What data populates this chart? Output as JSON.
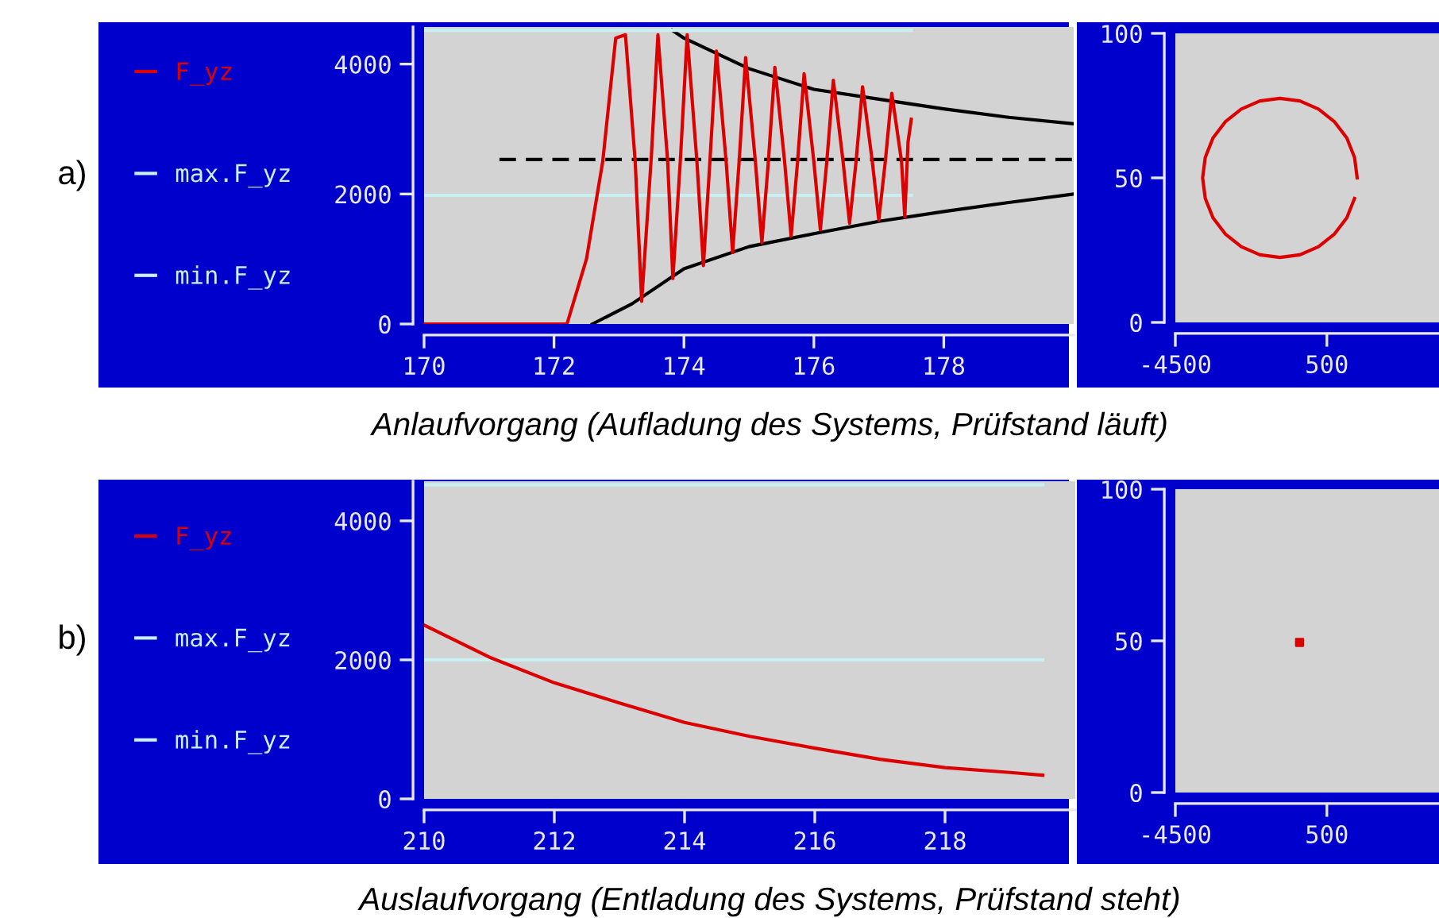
{
  "chart_data": [
    {
      "type": "line",
      "annotations": [
        "a)",
        "Anlaufvorgang (Aufladung des Systems, Prüfstand läuft)"
      ],
      "xlim": [
        170,
        180
      ],
      "ylim": [
        0,
        4570
      ],
      "xticks": [
        170,
        172,
        174,
        176,
        178
      ],
      "yticks": [
        0,
        2000,
        4000
      ],
      "legend": "left",
      "grid": false,
      "marker": "none",
      "series": [
        {
          "name": "F_yz",
          "color": "#dd0000",
          "x": [
            170,
            172.2,
            172.5,
            172.75,
            172.95,
            173.1,
            173.25,
            173.35,
            173.5,
            173.6,
            173.75,
            173.83,
            173.95,
            174.05,
            174.2,
            174.3,
            174.4,
            174.5,
            174.65,
            174.75,
            174.85,
            174.95,
            175.1,
            175.2,
            175.3,
            175.4,
            175.55,
            175.65,
            175.75,
            175.85,
            176.0,
            176.1,
            176.2,
            176.3,
            176.45,
            176.55,
            176.65,
            176.75,
            176.9,
            177.0,
            177.1,
            177.2,
            177.35,
            177.4,
            177.45,
            177.5
          ],
          "values": [
            0,
            0,
            1000,
            2500,
            4400,
            4450,
            2500,
            350,
            2600,
            4450,
            2500,
            700,
            2600,
            4450,
            2500,
            900,
            2500,
            4200,
            2500,
            1100,
            2500,
            4100,
            2500,
            1250,
            2500,
            3950,
            2500,
            1350,
            2500,
            3850,
            2500,
            1450,
            2500,
            3750,
            2500,
            1550,
            2500,
            3650,
            2500,
            1600,
            2500,
            3550,
            2500,
            1650,
            2800,
            3150
          ]
        },
        {
          "name": "max.F_yz",
          "color": "#c8f0f0",
          "x": [
            170,
            177.5
          ],
          "values": [
            4520,
            4520
          ]
        },
        {
          "name": "min.F_yz",
          "color": "#c8f0f0",
          "x": [
            170,
            177.5
          ],
          "values": [
            1980,
            1980
          ]
        },
        {
          "color": "#000000",
          "x": [
            173.82,
            174,
            175,
            176,
            177,
            178,
            179,
            180
          ],
          "values": [
            4520,
            4400,
            3930,
            3610,
            3460,
            3310,
            3180,
            3080
          ]
        },
        {
          "color": "#000000",
          "x": [
            172.59,
            173.2,
            174,
            175,
            176,
            177,
            178,
            179,
            180
          ],
          "values": [
            0,
            310,
            850,
            1190,
            1390,
            1580,
            1730,
            1870,
            2000
          ]
        },
        {
          "color": "#000000",
          "line_style": "dashed",
          "x": [
            171.16,
            180
          ],
          "values": [
            2530,
            2530
          ]
        }
      ]
    },
    {
      "type": "line",
      "xlim": [
        -4500,
        4200
      ],
      "ylim": [
        0,
        100
      ],
      "xticks": [
        -4500,
        500
      ],
      "yticks": [
        0,
        50,
        100
      ],
      "grid": false,
      "series": [
        {
          "color": "#dd0000",
          "x": [
            1500,
            1413,
            1158,
            753,
            225,
            -390,
            -1050,
            -1710,
            -2325,
            -2853,
            -3258,
            -3513,
            -3600,
            -3513,
            -3258,
            -2853,
            -2325,
            -1710,
            -1050,
            -390,
            225,
            753,
            1158,
            1413
          ],
          "values": [
            50,
            57.1,
            63.8,
            69.4,
            73.8,
            76.6,
            77.5,
            76.6,
            73.8,
            69.4,
            63.8,
            57.1,
            50,
            42.9,
            36.2,
            30.6,
            26.2,
            23.4,
            22.5,
            23.4,
            26.2,
            30.6,
            36.2,
            42.9
          ]
        }
      ]
    },
    {
      "type": "line",
      "annotations": [
        "b)",
        "Auslaufvorgang (Entladung des Systems, Prüfstand steht)"
      ],
      "xlim": [
        210,
        220
      ],
      "ylim": [
        0,
        4570
      ],
      "xticks": [
        210,
        212,
        214,
        216,
        218
      ],
      "yticks": [
        0,
        2000,
        4000
      ],
      "legend": "left",
      "grid": false,
      "marker": "none",
      "series": [
        {
          "name": "F_yz",
          "color": "#dd0000",
          "x": [
            210,
            211,
            212,
            213,
            214,
            215,
            216,
            217,
            218,
            219,
            219.5
          ],
          "values": [
            2500,
            2040,
            1670,
            1380,
            1100,
            900,
            730,
            570,
            450,
            380,
            340
          ]
        },
        {
          "name": "max.F_yz",
          "color": "#c8f0f0",
          "x": [
            210,
            219.5
          ],
          "values": [
            4520,
            4520
          ]
        },
        {
          "name": "min.F_yz",
          "color": "#c8f0f0",
          "x": [
            210,
            219.5
          ],
          "values": [
            2000,
            2000
          ]
        }
      ]
    },
    {
      "type": "scatter",
      "xlim": [
        -4500,
        4200
      ],
      "ylim": [
        0,
        100
      ],
      "xticks": [
        -4500,
        500
      ],
      "yticks": [
        0,
        50,
        100
      ],
      "grid": false,
      "marker": "square",
      "series": [
        {
          "color": "#dd0000",
          "x": [
            -400
          ],
          "values": [
            49.5
          ]
        }
      ]
    }
  ]
}
